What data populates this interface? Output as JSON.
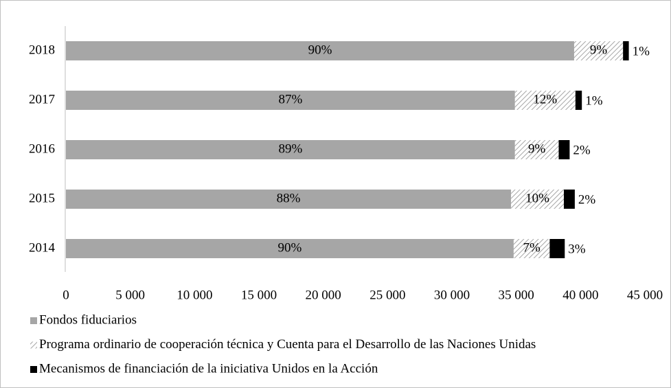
{
  "chart_data": {
    "type": "stacked-bar-horizontal",
    "categories": [
      "2018",
      "2017",
      "2016",
      "2015",
      "2014"
    ],
    "series": [
      {
        "name": "Fondos fiduciarios",
        "color": "#a6a6a6",
        "pattern": "solid",
        "values": [
          39500,
          34900,
          34900,
          34600,
          34800
        ],
        "value_labels": [
          "90%",
          "87%",
          "89%",
          "88%",
          "90%"
        ]
      },
      {
        "name": "Programa ordinario de cooperación técnica y Cuenta para el Desarrollo de las Naciones Unidas",
        "color": "#a6a6a6",
        "pattern": "hatch",
        "values": [
          3800,
          4700,
          3400,
          4100,
          2800
        ],
        "value_labels": [
          "9%",
          "12%",
          "9%",
          "10%",
          "7%"
        ]
      },
      {
        "name": "Mecanismos de financiación de la iniciativa Unidos en la Acción",
        "color": "#000000",
        "pattern": "solid",
        "values": [
          450,
          500,
          850,
          850,
          1170
        ],
        "value_labels": [
          "1%",
          "1%",
          "2%",
          "2%",
          "3%"
        ]
      }
    ],
    "xlim": [
      0,
      45000
    ],
    "xticks": [
      0,
      {
        "value": 5000,
        "label": "5 000"
      },
      {
        "value": 10000,
        "label": "10 000"
      },
      {
        "value": 15000,
        "label": "15 000"
      },
      {
        "value": 20000,
        "label": "20 000"
      },
      {
        "value": 25000,
        "label": "25 000"
      },
      {
        "value": 30000,
        "label": "30 000"
      },
      {
        "value": 35000,
        "label": "35 000"
      },
      {
        "value": 40000,
        "label": "40 000"
      },
      {
        "value": 45000,
        "label": "45 000"
      }
    ],
    "grid": false,
    "legend": "bottom"
  }
}
